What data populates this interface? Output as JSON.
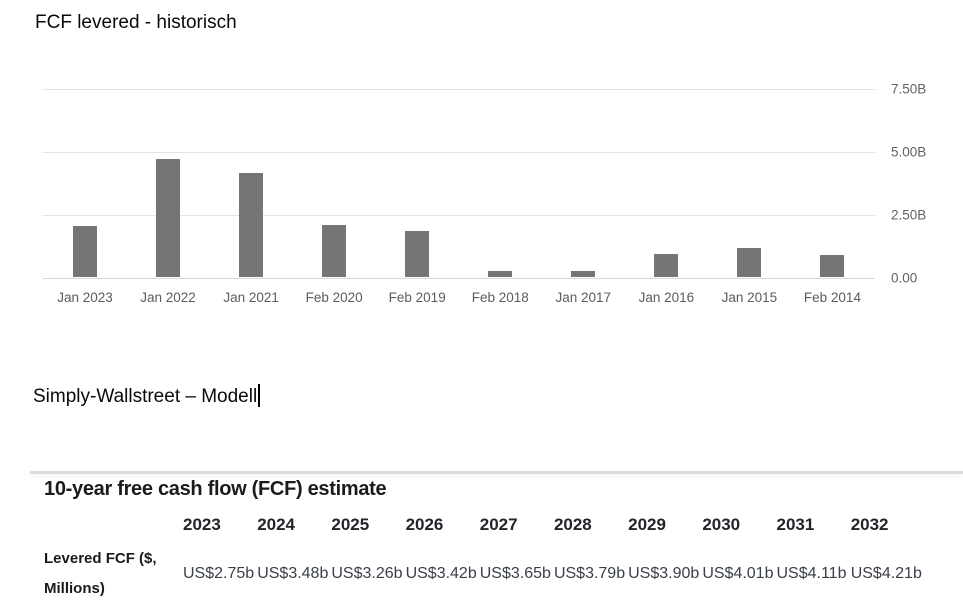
{
  "document": {
    "heading_top": "FCF levered - historisch",
    "heading_model": "Simply-Wallstreet – Modell"
  },
  "chart_data": {
    "type": "bar",
    "title": "FCF levered - historisch",
    "categories": [
      "Jan 2023",
      "Jan 2022",
      "Jan 2021",
      "Feb 2020",
      "Feb 2019",
      "Feb 2018",
      "Jan 2017",
      "Jan 2016",
      "Jan 2015",
      "Feb 2014"
    ],
    "values": [
      2.06,
      4.73,
      4.14,
      2.07,
      1.85,
      0.24,
      0.25,
      0.95,
      1.18,
      0.9
    ],
    "unit": "B",
    "xlabel": "",
    "ylabel": "",
    "ylim": [
      0,
      7.5
    ],
    "yticks": [
      {
        "label": "7.50B",
        "value": 7.5
      },
      {
        "label": "5.00B",
        "value": 5.0
      },
      {
        "label": "2.50B",
        "value": 2.5
      },
      {
        "label": "0.00",
        "value": 0
      }
    ],
    "grid": "horizontal",
    "legend_position": "none",
    "bar_color": "#757575",
    "gridline_color": "#e3e3e3",
    "axis_label_color": "#5f6368"
  },
  "fcf_table": {
    "title": "10-year free cash flow (FCF) estimate",
    "row_label": "Levered FCF ($, Millions)",
    "years": [
      "2023",
      "2024",
      "2025",
      "2026",
      "2027",
      "2028",
      "2029",
      "2030",
      "2031",
      "2032"
    ],
    "values": [
      "US$2.75b",
      "US$3.48b",
      "US$3.26b",
      "US$3.42b",
      "US$3.65b",
      "US$3.79b",
      "US$3.90b",
      "US$4.01b",
      "US$4.11b",
      "US$4.21b"
    ]
  }
}
